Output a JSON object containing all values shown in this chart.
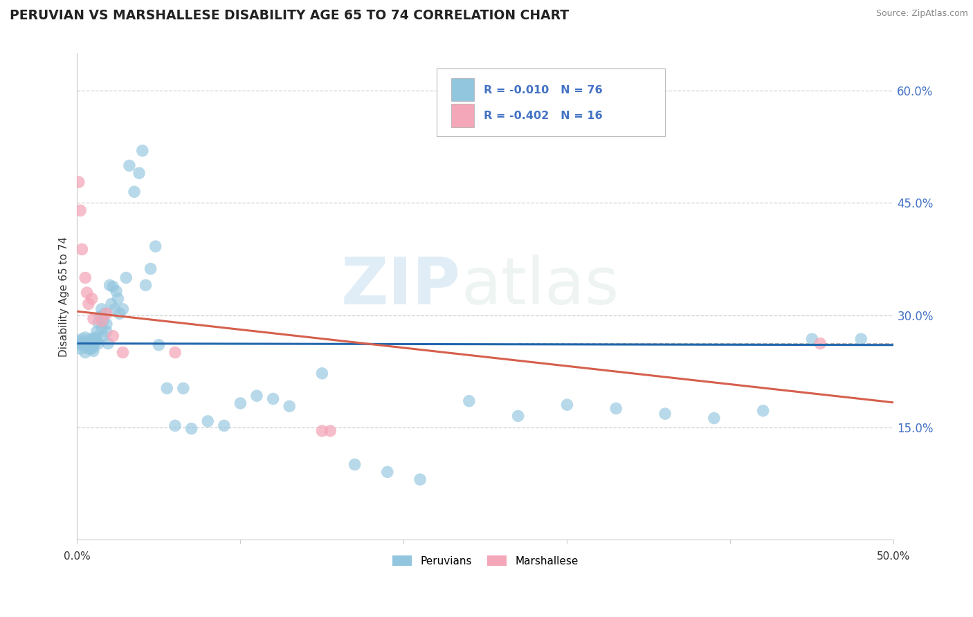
{
  "title": "PERUVIAN VS MARSHALLESE DISABILITY AGE 65 TO 74 CORRELATION CHART",
  "source": "Source: ZipAtlas.com",
  "ylabel": "Disability Age 65 to 74",
  "xlim": [
    0.0,
    0.5
  ],
  "ylim": [
    0.0,
    0.65
  ],
  "yticks": [
    0.15,
    0.3,
    0.45,
    0.6
  ],
  "ytick_labels": [
    "15.0%",
    "30.0%",
    "45.0%",
    "60.0%"
  ],
  "xtick_positions": [
    0.0,
    0.1,
    0.2,
    0.3,
    0.4,
    0.5
  ],
  "legend_r1": "R = -0.010",
  "legend_n1": "N = 76",
  "legend_r2": "R = -0.402",
  "legend_n2": "N = 16",
  "legend_label1": "Peruvians",
  "legend_label2": "Marshallese",
  "blue_scatter_color": "#92c5de",
  "pink_scatter_color": "#f4a7b9",
  "blue_line_color": "#2166ac",
  "pink_line_color": "#d6604d",
  "dash_color": "#aaaaaa",
  "blue_line_y_at_0": 0.262,
  "blue_line_y_at_50": 0.26,
  "pink_line_y_at_0": 0.305,
  "pink_line_y_at_50": 0.183,
  "dash_line_y": 0.262,
  "dash_line_x_start": 0.27,
  "peruvian_x": [
    0.001,
    0.002,
    0.002,
    0.003,
    0.003,
    0.004,
    0.005,
    0.005,
    0.005,
    0.006,
    0.006,
    0.007,
    0.007,
    0.008,
    0.008,
    0.008,
    0.009,
    0.009,
    0.01,
    0.01,
    0.01,
    0.011,
    0.011,
    0.012,
    0.012,
    0.013,
    0.013,
    0.014,
    0.015,
    0.015,
    0.016,
    0.016,
    0.017,
    0.018,
    0.018,
    0.019,
    0.02,
    0.021,
    0.022,
    0.023,
    0.024,
    0.025,
    0.026,
    0.028,
    0.03,
    0.032,
    0.035,
    0.038,
    0.04,
    0.042,
    0.045,
    0.048,
    0.05,
    0.055,
    0.06,
    0.065,
    0.07,
    0.08,
    0.09,
    0.1,
    0.11,
    0.12,
    0.13,
    0.15,
    0.17,
    0.19,
    0.21,
    0.24,
    0.27,
    0.3,
    0.33,
    0.36,
    0.39,
    0.42,
    0.45,
    0.48
  ],
  "peruvian_y": [
    0.265,
    0.26,
    0.255,
    0.262,
    0.268,
    0.26,
    0.27,
    0.26,
    0.25,
    0.258,
    0.262,
    0.255,
    0.265,
    0.258,
    0.268,
    0.26,
    0.255,
    0.265,
    0.258,
    0.252,
    0.268,
    0.264,
    0.27,
    0.278,
    0.268,
    0.29,
    0.262,
    0.298,
    0.308,
    0.282,
    0.292,
    0.272,
    0.302,
    0.288,
    0.278,
    0.262,
    0.34,
    0.315,
    0.338,
    0.308,
    0.332,
    0.322,
    0.302,
    0.308,
    0.35,
    0.5,
    0.465,
    0.49,
    0.52,
    0.34,
    0.362,
    0.392,
    0.26,
    0.202,
    0.152,
    0.202,
    0.148,
    0.158,
    0.152,
    0.182,
    0.192,
    0.188,
    0.178,
    0.222,
    0.1,
    0.09,
    0.08,
    0.185,
    0.165,
    0.18,
    0.175,
    0.168,
    0.162,
    0.172,
    0.268,
    0.268
  ],
  "marshallese_x": [
    0.001,
    0.002,
    0.003,
    0.005,
    0.006,
    0.007,
    0.009,
    0.01,
    0.015,
    0.018,
    0.022,
    0.028,
    0.06,
    0.15,
    0.155,
    0.455
  ],
  "marshallese_y": [
    0.478,
    0.44,
    0.388,
    0.35,
    0.33,
    0.315,
    0.322,
    0.295,
    0.292,
    0.302,
    0.272,
    0.25,
    0.25,
    0.145,
    0.145,
    0.262
  ],
  "watermark_zip": "ZIP",
  "watermark_atlas": "atlas",
  "bg_color": "#ffffff",
  "grid_color": "#d0d0d0"
}
